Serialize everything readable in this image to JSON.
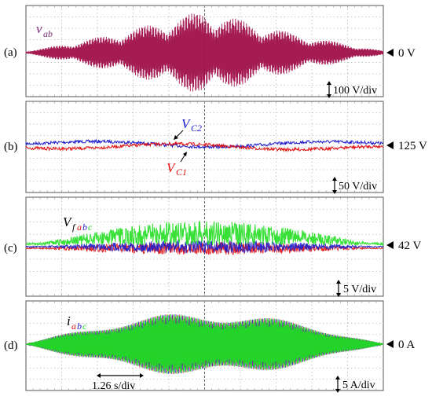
{
  "chart_data": [
    {
      "type": "line",
      "panel": "(a)",
      "reference_label": "0 V",
      "scale_label": "100 V/div",
      "series": [
        {
          "name": "v_ab",
          "label_main": "v",
          "label_sub": "ab",
          "color": "#a0104a",
          "envelope": [
            [
              0,
              0.02
            ],
            [
              0.25,
              0.45
            ],
            [
              0.5,
              1.0
            ],
            [
              0.75,
              0.45
            ],
            [
              1,
              0.04
            ]
          ]
        }
      ]
    },
    {
      "type": "line",
      "panel": "(b)",
      "reference_label": "125 V",
      "scale_label": "50 V/div",
      "series": [
        {
          "name": "V_C2",
          "label_main": "V",
          "label_sub": "C2",
          "color": "#1d1dcc",
          "offset": 0.02
        },
        {
          "name": "V_C1",
          "label_main": "V",
          "label_sub": "C1",
          "color": "#e01010",
          "offset": -0.02
        }
      ]
    },
    {
      "type": "line",
      "panel": "(c)",
      "reference_label": "42 V",
      "scale_label": "5 V/div",
      "series_label_main": "V",
      "series_label_f": "f",
      "series": [
        {
          "name": "V_fa",
          "phase": "a",
          "color": "#e01010"
        },
        {
          "name": "V_fb",
          "phase": "b",
          "color": "#1d1dcc"
        },
        {
          "name": "V_fc",
          "phase": "c",
          "color": "#22dd22"
        }
      ]
    },
    {
      "type": "line",
      "panel": "(d)",
      "reference_label": "0 A",
      "scale_label": "5 A/div",
      "time_scale_label": "1.26 s/div",
      "series_label_main": "i",
      "series": [
        {
          "name": "i_a",
          "phase": "a",
          "color": "#e01010"
        },
        {
          "name": "i_b",
          "phase": "b",
          "color": "#1d1dcc"
        },
        {
          "name": "i_c",
          "phase": "c",
          "color": "#22dd22"
        }
      ]
    }
  ]
}
